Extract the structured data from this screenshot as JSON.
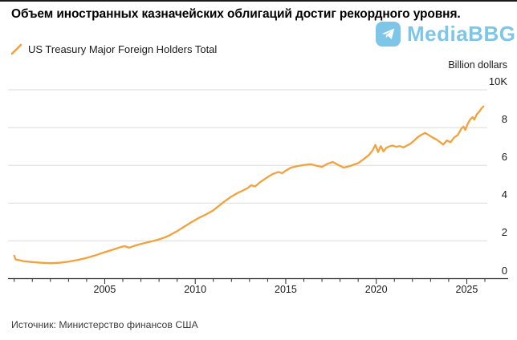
{
  "header": {
    "title": "Объем иностранных казначейских облигаций достиг рекордного уровня."
  },
  "watermark": {
    "name": "MediaBBG",
    "color": "#7EC6E8",
    "icon": "telegram-paper-plane"
  },
  "legend": {
    "label": "US Treasury Major Foreign Holders Total",
    "line_color": "#F2A23D"
  },
  "footer": {
    "source": "Источник: Министерство финансов США"
  },
  "chart_data": {
    "type": "line",
    "title": "Объем иностранных казначейских облигаций достиг рекордного уровня.",
    "series_name": "US Treasury Major Foreign Holders Total",
    "unit_label": "Billion dollars",
    "line_color": "#F2A23D",
    "grid": true,
    "legend_position": "top-left",
    "ylim": [
      0,
      10
    ],
    "y_ticks": [
      {
        "value": 0,
        "label": "0"
      },
      {
        "value": 2,
        "label": "2"
      },
      {
        "value": 4,
        "label": "4"
      },
      {
        "value": 6,
        "label": "6"
      },
      {
        "value": 8,
        "label": "8"
      },
      {
        "value": 10,
        "label": "10K"
      }
    ],
    "x_range": [
      2000,
      2026
    ],
    "x_major_ticks": [
      {
        "value": 2005,
        "label": "2005"
      },
      {
        "value": 2010,
        "label": "2010"
      },
      {
        "value": 2015,
        "label": "2015"
      },
      {
        "value": 2020,
        "label": "2020"
      },
      {
        "value": 2025,
        "label": "2025"
      }
    ],
    "x_minor_tick_step": 1,
    "points": [
      [
        2000.0,
        1.22
      ],
      [
        2000.08,
        1.02
      ],
      [
        2000.5,
        0.93
      ],
      [
        2001.0,
        0.88
      ],
      [
        2001.5,
        0.84
      ],
      [
        2002.0,
        0.82
      ],
      [
        2002.5,
        0.84
      ],
      [
        2003.0,
        0.9
      ],
      [
        2003.5,
        0.99
      ],
      [
        2004.0,
        1.1
      ],
      [
        2004.5,
        1.24
      ],
      [
        2005.0,
        1.4
      ],
      [
        2005.5,
        1.55
      ],
      [
        2005.9,
        1.68
      ],
      [
        2006.1,
        1.72
      ],
      [
        2006.35,
        1.64
      ],
      [
        2006.7,
        1.76
      ],
      [
        2007.0,
        1.84
      ],
      [
        2007.4,
        1.93
      ],
      [
        2007.7,
        2.0
      ],
      [
        2008.0,
        2.08
      ],
      [
        2008.3,
        2.18
      ],
      [
        2008.6,
        2.3
      ],
      [
        2009.0,
        2.52
      ],
      [
        2009.4,
        2.76
      ],
      [
        2009.8,
        3.0
      ],
      [
        2010.2,
        3.22
      ],
      [
        2010.6,
        3.4
      ],
      [
        2011.0,
        3.62
      ],
      [
        2011.3,
        3.85
      ],
      [
        2011.6,
        4.08
      ],
      [
        2012.0,
        4.35
      ],
      [
        2012.3,
        4.52
      ],
      [
        2012.6,
        4.65
      ],
      [
        2012.9,
        4.8
      ],
      [
        2013.1,
        4.95
      ],
      [
        2013.3,
        4.88
      ],
      [
        2013.6,
        5.12
      ],
      [
        2014.0,
        5.38
      ],
      [
        2014.3,
        5.55
      ],
      [
        2014.6,
        5.65
      ],
      [
        2014.8,
        5.58
      ],
      [
        2015.0,
        5.72
      ],
      [
        2015.3,
        5.88
      ],
      [
        2015.6,
        5.95
      ],
      [
        2016.0,
        6.02
      ],
      [
        2016.4,
        6.06
      ],
      [
        2016.7,
        5.98
      ],
      [
        2017.0,
        5.92
      ],
      [
        2017.3,
        6.08
      ],
      [
        2017.6,
        6.18
      ],
      [
        2017.9,
        6.02
      ],
      [
        2018.2,
        5.88
      ],
      [
        2018.5,
        5.95
      ],
      [
        2018.8,
        6.05
      ],
      [
        2019.0,
        6.12
      ],
      [
        2019.3,
        6.32
      ],
      [
        2019.6,
        6.55
      ],
      [
        2019.8,
        6.8
      ],
      [
        2019.95,
        7.08
      ],
      [
        2020.1,
        6.7
      ],
      [
        2020.25,
        7.02
      ],
      [
        2020.4,
        6.74
      ],
      [
        2020.55,
        6.92
      ],
      [
        2020.7,
        7.0
      ],
      [
        2020.9,
        7.05
      ],
      [
        2021.1,
        6.98
      ],
      [
        2021.3,
        7.02
      ],
      [
        2021.5,
        6.95
      ],
      [
        2021.7,
        7.05
      ],
      [
        2021.9,
        7.15
      ],
      [
        2022.1,
        7.32
      ],
      [
        2022.3,
        7.5
      ],
      [
        2022.5,
        7.62
      ],
      [
        2022.7,
        7.72
      ],
      [
        2022.9,
        7.6
      ],
      [
        2023.1,
        7.48
      ],
      [
        2023.3,
        7.38
      ],
      [
        2023.5,
        7.25
      ],
      [
        2023.7,
        7.1
      ],
      [
        2023.9,
        7.32
      ],
      [
        2024.1,
        7.22
      ],
      [
        2024.3,
        7.48
      ],
      [
        2024.5,
        7.6
      ],
      [
        2024.7,
        7.95
      ],
      [
        2024.82,
        8.05
      ],
      [
        2024.92,
        7.88
      ],
      [
        2025.05,
        8.2
      ],
      [
        2025.2,
        8.45
      ],
      [
        2025.32,
        8.55
      ],
      [
        2025.42,
        8.42
      ],
      [
        2025.55,
        8.7
      ],
      [
        2025.7,
        8.85
      ],
      [
        2025.8,
        9.0
      ],
      [
        2025.92,
        9.12
      ]
    ]
  }
}
